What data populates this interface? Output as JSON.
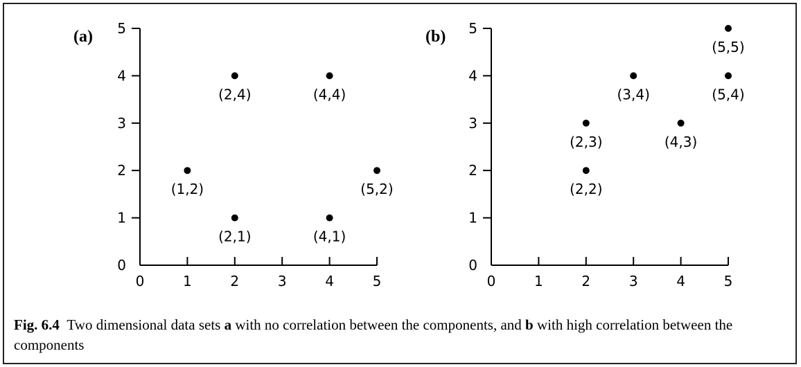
{
  "caption": {
    "fig_label": "Fig. 6.4",
    "text_1": "Two dimensional data sets",
    "bold_a": "a",
    "text_2": "with no correlation between the components, and",
    "bold_b": "b",
    "text_3": "with high correlation between the components"
  },
  "chart_data": [
    {
      "type": "scatter",
      "panel_tag": "(a)",
      "xlim": [
        0,
        5
      ],
      "ylim": [
        0,
        5
      ],
      "x_ticks": [
        "0",
        "1",
        "2",
        "3",
        "4",
        "5"
      ],
      "y_ticks": [
        "0",
        "1",
        "2",
        "3",
        "4",
        "5"
      ],
      "points": [
        {
          "x": 1,
          "y": 2,
          "label": "(1,2)"
        },
        {
          "x": 2,
          "y": 4,
          "label": "(2,4)"
        },
        {
          "x": 2,
          "y": 1,
          "label": "(2,1)"
        },
        {
          "x": 4,
          "y": 4,
          "label": "(4,4)"
        },
        {
          "x": 4,
          "y": 1,
          "label": "(4,1)"
        },
        {
          "x": 5,
          "y": 2,
          "label": "(5,2)"
        }
      ]
    },
    {
      "type": "scatter",
      "panel_tag": "(b)",
      "xlim": [
        0,
        5
      ],
      "ylim": [
        0,
        5
      ],
      "x_ticks": [
        "0",
        "1",
        "2",
        "3",
        "4",
        "5"
      ],
      "y_ticks": [
        "0",
        "1",
        "2",
        "3",
        "4",
        "5"
      ],
      "points": [
        {
          "x": 2,
          "y": 2,
          "label": "(2,2)"
        },
        {
          "x": 2,
          "y": 3,
          "label": "(2,3)"
        },
        {
          "x": 3,
          "y": 4,
          "label": "(3,4)"
        },
        {
          "x": 4,
          "y": 3,
          "label": "(4,3)"
        },
        {
          "x": 5,
          "y": 4,
          "label": "(5,4)"
        },
        {
          "x": 5,
          "y": 5,
          "label": "(5,5)"
        }
      ]
    }
  ]
}
